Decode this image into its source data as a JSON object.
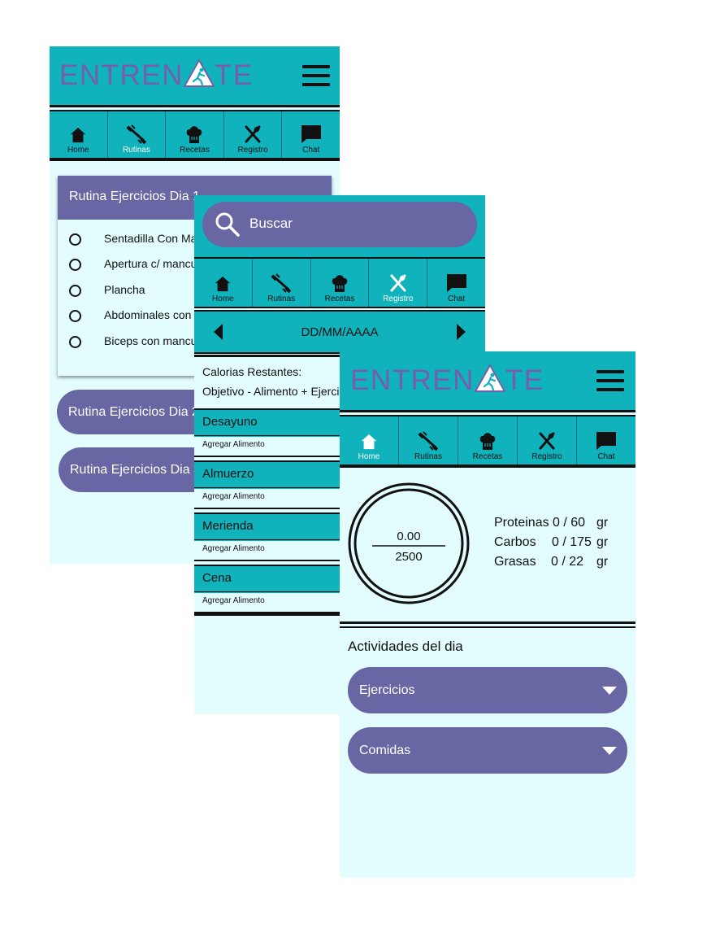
{
  "brand": {
    "name_left": "ENTREN",
    "name_right": "TE"
  },
  "colors": {
    "teal": "#10b2bc",
    "purple": "#6866a3",
    "background": "#e3fcfd",
    "logo": "#7360a8"
  },
  "nav": {
    "home": "Home",
    "rutinas": "Rutinas",
    "recetas": "Recetas",
    "registro": "Registro",
    "chat": "Chat"
  },
  "screen_rutinas": {
    "active_tab": "Rutinas",
    "expanded_routine": {
      "title": "Rutina Ejercicios Dia 1",
      "exercises": [
        "Sentadilla Con Mancuernas",
        "Apertura c/ mancuernas",
        "Plancha",
        "Abdominales con pelota",
        "Biceps con mancuernas"
      ]
    },
    "routines": [
      "Rutina Ejercicios Dia 2",
      "Rutina Ejercicios Dia 3"
    ]
  },
  "screen_registro": {
    "active_tab": "Registro",
    "search": {
      "placeholder": "Buscar"
    },
    "date": "DD/MM/AAAA",
    "calories_label": "Calorias Restantes:",
    "formula": "Objetivo - Alimento + Ejercicio",
    "meals": [
      {
        "name": "Desayuno",
        "action": "Agregar Alimento"
      },
      {
        "name": "Almuerzo",
        "action": "Agregar Alimento"
      },
      {
        "name": "Merienda",
        "action": "Agregar Alimento"
      },
      {
        "name": "Cena",
        "action": "Agregar Alimento"
      }
    ]
  },
  "screen_home": {
    "active_tab": "Home",
    "calories": {
      "consumed": "0.00",
      "goal": "2500"
    },
    "macros": [
      {
        "name": "Proteinas",
        "value": "0 / 60",
        "unit": "gr"
      },
      {
        "name": "Carbos",
        "value": "0 / 175",
        "unit": "gr"
      },
      {
        "name": "Grasas",
        "value": "0 / 22",
        "unit": "gr"
      }
    ],
    "activities_title": "Actividades del dia",
    "dropdowns": [
      "Ejercicios",
      "Comidas"
    ]
  }
}
